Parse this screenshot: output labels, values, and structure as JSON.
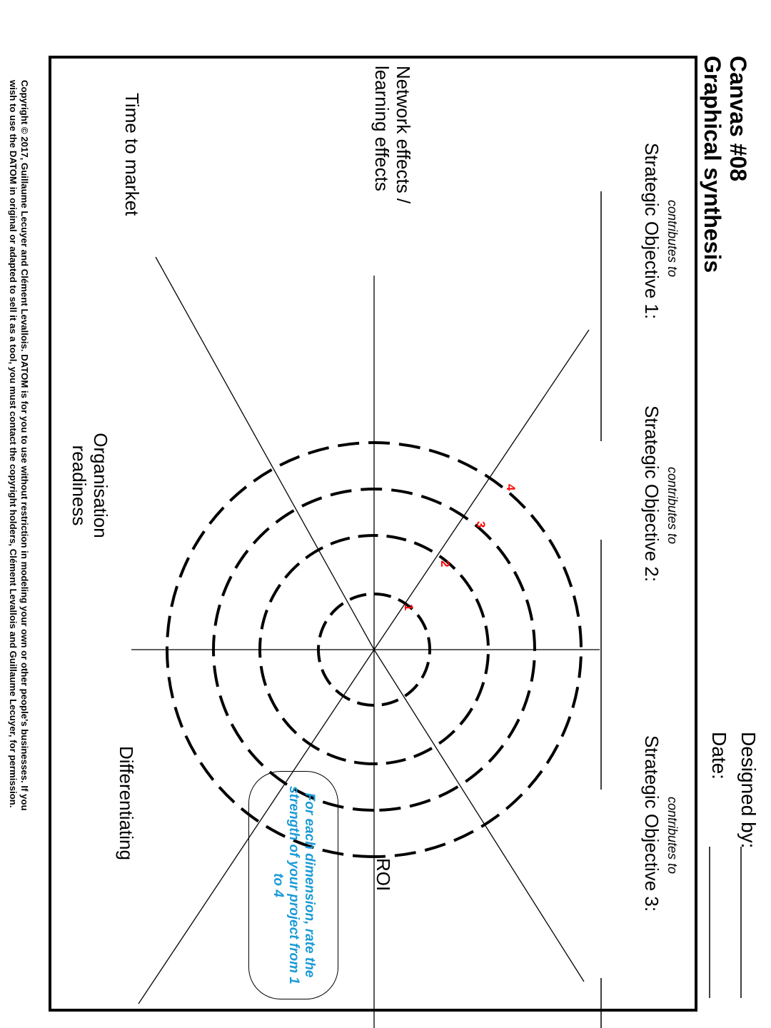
{
  "header": {
    "canvas_number": "Canvas #08",
    "canvas_title": "Graphical synthesis",
    "designed_by_label": "Designed by:",
    "date_label": "Date:"
  },
  "objectives": [
    {
      "contributes": "contributes to",
      "label": "Strategic Objective 1:"
    },
    {
      "contributes": "contributes to",
      "label": "Strategic Objective 2:"
    },
    {
      "contributes": "contributes to",
      "label": "Strategic Objective 3:"
    }
  ],
  "dimensions": {
    "network_line1": "Network effects /",
    "network_line2": "learning effects",
    "time_to_market": "Time to market",
    "organisation_line1": "Organisation",
    "organisation_line2": "readiness",
    "differentiating": "Differentiating",
    "roi": "ROI"
  },
  "rings": [
    "1",
    "2",
    "3",
    "4"
  ],
  "instruction": "For each dimension, rate the strength of your project from 1 to 4",
  "copyright_line1": "Copyright © 2017, Guillaume Lecuyer and Clément Levallois. DATOM is for you to use without restriction in modeling your own or other people's businesses. If you",
  "copyright_line2": "wish to use the DATOM in original or adapted to sell it as a tool, you must contact the copyright holders, Clément Levallois and Guillaume Lecuyer, for permission.",
  "colors": {
    "ring_label": "#ff0000",
    "instruction_text": "#1a9ad6",
    "lines": "#000000"
  }
}
